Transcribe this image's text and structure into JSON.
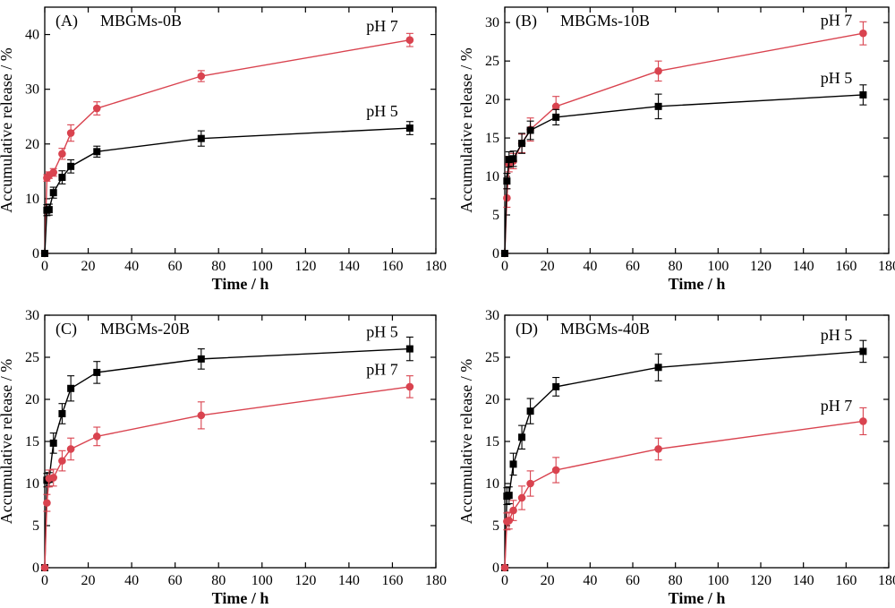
{
  "chart_data": [
    {
      "type": "line",
      "panel": "(A)",
      "title": "MBGMs-0B",
      "xlabel": "Time / h",
      "ylabel": "Accumulative release / %",
      "xlim": [
        0,
        180
      ],
      "ylim": [
        0,
        45
      ],
      "xticks": [
        0,
        20,
        40,
        60,
        80,
        100,
        120,
        140,
        160,
        180
      ],
      "yticks": [
        0,
        10,
        20,
        30,
        40
      ],
      "x": [
        0,
        1,
        2,
        4,
        8,
        12,
        24,
        72,
        168
      ],
      "series": [
        {
          "name": "pH 7",
          "color": "#d9434f",
          "marker": "circle",
          "values": [
            0,
            13.8,
            14.3,
            14.8,
            18.2,
            22.0,
            26.5,
            32.4,
            39.0
          ],
          "errors": [
            0,
            0.6,
            0.6,
            0.7,
            1.0,
            1.5,
            1.2,
            1.0,
            1.2
          ]
        },
        {
          "name": "pH 5",
          "color": "#000000",
          "marker": "square",
          "values": [
            0,
            7.9,
            8.0,
            11.1,
            13.9,
            15.9,
            18.6,
            21.0,
            22.9
          ],
          "errors": [
            0,
            1.0,
            1.0,
            1.0,
            1.2,
            1.2,
            1.0,
            1.4,
            1.2
          ]
        }
      ],
      "labels": [
        {
          "text": "pH 7",
          "x": 148,
          "y": 40.6
        },
        {
          "text": "pH 5",
          "x": 148,
          "y": 25.0
        }
      ]
    },
    {
      "type": "line",
      "panel": "(B)",
      "title": "MBGMs-10B",
      "xlabel": "Time / h",
      "ylabel": "Accumulative release / %",
      "xlim": [
        0,
        180
      ],
      "ylim": [
        0,
        32
      ],
      "xticks": [
        0,
        20,
        40,
        60,
        80,
        100,
        120,
        140,
        160,
        180
      ],
      "yticks": [
        0,
        5,
        10,
        15,
        20,
        25,
        30
      ],
      "x": [
        0,
        1,
        2,
        4,
        8,
        12,
        24,
        72,
        168
      ],
      "series": [
        {
          "name": "pH 7",
          "color": "#d9434f",
          "marker": "circle",
          "values": [
            0,
            7.2,
            11.6,
            12.0,
            14.3,
            16.1,
            19.1,
            23.7,
            28.6
          ],
          "errors": [
            0,
            1.2,
            1.0,
            1.0,
            1.2,
            1.5,
            1.3,
            1.3,
            1.5
          ]
        },
        {
          "name": "pH 5",
          "color": "#000000",
          "marker": "square",
          "values": [
            0,
            9.4,
            12.2,
            12.3,
            14.3,
            16.0,
            17.7,
            19.1,
            20.6
          ],
          "errors": [
            0,
            1.0,
            1.0,
            1.0,
            1.3,
            1.2,
            1.0,
            1.6,
            1.3
          ]
        }
      ],
      "labels": [
        {
          "text": "pH 7",
          "x": 148,
          "y": 29.6
        },
        {
          "text": "pH 5",
          "x": 148,
          "y": 22.1
        }
      ]
    },
    {
      "type": "line",
      "panel": "(C)",
      "title": "MBGMs-20B",
      "xlabel": "Time / h",
      "ylabel": "Accumulative release / %",
      "xlim": [
        0,
        180
      ],
      "ylim": [
        0,
        30
      ],
      "xticks": [
        0,
        20,
        40,
        60,
        80,
        100,
        120,
        140,
        160,
        180
      ],
      "yticks": [
        0,
        5,
        10,
        15,
        20,
        25,
        30
      ],
      "x": [
        0,
        1,
        2,
        4,
        8,
        12,
        24,
        72,
        168
      ],
      "series": [
        {
          "name": "pH 5",
          "color": "#000000",
          "marker": "square",
          "values": [
            0,
            10.4,
            10.5,
            14.8,
            18.3,
            21.3,
            23.2,
            24.8,
            26.0
          ],
          "errors": [
            0,
            0.8,
            0.8,
            1.2,
            1.2,
            1.5,
            1.3,
            1.2,
            1.4
          ]
        },
        {
          "name": "pH 7",
          "color": "#d9434f",
          "marker": "circle",
          "values": [
            0,
            7.7,
            10.6,
            10.7,
            12.7,
            14.1,
            15.6,
            18.1,
            21.5
          ],
          "errors": [
            0,
            1.0,
            1.0,
            1.0,
            1.2,
            1.3,
            1.1,
            1.6,
            1.3
          ]
        }
      ],
      "labels": [
        {
          "text": "pH 5",
          "x": 148,
          "y": 27.4
        },
        {
          "text": "pH 7",
          "x": 148,
          "y": 22.9
        }
      ]
    },
    {
      "type": "line",
      "panel": "(D)",
      "title": "MBGMs-40B",
      "xlabel": "Time / h",
      "ylabel": "Accumulative release / %",
      "xlim": [
        0,
        180
      ],
      "ylim": [
        0,
        30
      ],
      "xticks": [
        0,
        20,
        40,
        60,
        80,
        100,
        120,
        140,
        160,
        180
      ],
      "yticks": [
        0,
        5,
        10,
        15,
        20,
        25,
        30
      ],
      "x": [
        0,
        1,
        2,
        4,
        8,
        12,
        24,
        72,
        168
      ],
      "series": [
        {
          "name": "pH 5",
          "color": "#000000",
          "marker": "square",
          "values": [
            0,
            8.5,
            8.6,
            12.3,
            15.5,
            18.6,
            21.5,
            23.8,
            25.7
          ],
          "errors": [
            0,
            1.0,
            1.0,
            1.3,
            1.4,
            1.5,
            1.1,
            1.6,
            1.3
          ]
        },
        {
          "name": "pH 7",
          "color": "#d9434f",
          "marker": "circle",
          "values": [
            0,
            5.5,
            5.6,
            6.8,
            8.3,
            10.0,
            11.6,
            14.1,
            17.4
          ],
          "errors": [
            0,
            1.0,
            1.0,
            1.2,
            1.4,
            1.5,
            1.5,
            1.3,
            1.6
          ]
        }
      ],
      "labels": [
        {
          "text": "pH 5",
          "x": 148,
          "y": 27.0
        },
        {
          "text": "pH 7",
          "x": 148,
          "y": 18.6
        }
      ]
    }
  ]
}
